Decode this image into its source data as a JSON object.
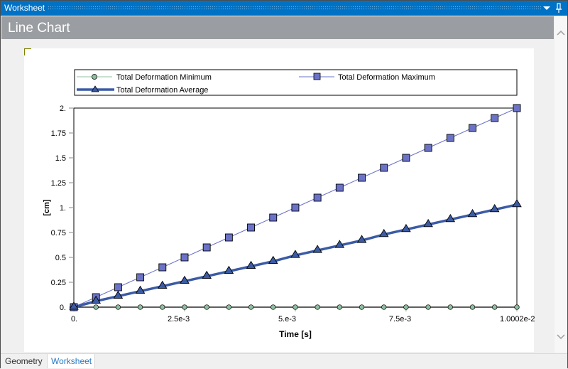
{
  "window": {
    "title": "Worksheet",
    "dropdown_icon": "chevron-down-icon",
    "pin_icon": "pin-icon"
  },
  "header": {
    "title": "Line Chart"
  },
  "tabs": [
    {
      "label": "Geometry",
      "active": false
    },
    {
      "label": "Worksheet",
      "active": true
    }
  ],
  "colors": {
    "titlebar": "#0072c6",
    "header": "#9a9da1",
    "min_series": "#8fbf9f",
    "max_series": "#6b73c8",
    "avg_series": "#3b5ba5"
  },
  "chart_data": {
    "type": "line",
    "title": "",
    "xlabel": "Time [s]",
    "ylabel": "[cm]",
    "xlim": [
      0,
      0.010002
    ],
    "ylim": [
      0,
      2
    ],
    "x_tick_labels": [
      "0.",
      "2.5e-3",
      "5.e-3",
      "7.5e-3",
      "1.0002e-2"
    ],
    "y_tick_labels": [
      "0.",
      "0.25",
      "0.5",
      "0.75",
      "1.",
      "1.25",
      "1.5",
      "1.75",
      "2."
    ],
    "grid": false,
    "legend_position": "top",
    "x": [
      0,
      0.0005,
      0.001,
      0.0015,
      0.002,
      0.0025,
      0.003,
      0.0035,
      0.004,
      0.0045,
      0.005,
      0.0055,
      0.006,
      0.0065,
      0.007,
      0.0075,
      0.008,
      0.0085,
      0.009,
      0.0095,
      0.010002
    ],
    "series": [
      {
        "name": "Total Deformation Minimum",
        "marker": "circle",
        "values": [
          0,
          0,
          0,
          0,
          0,
          0,
          0,
          0,
          0,
          0,
          0,
          0,
          0,
          0,
          0,
          0,
          0,
          0,
          0,
          0,
          0
        ]
      },
      {
        "name": "Total Deformation Maximum",
        "marker": "square",
        "values": [
          0,
          0.1,
          0.2,
          0.3,
          0.4,
          0.5,
          0.6,
          0.7,
          0.8,
          0.9,
          1.0,
          1.1,
          1.2,
          1.3,
          1.4,
          1.5,
          1.6,
          1.7,
          1.8,
          1.9,
          2.0
        ]
      },
      {
        "name": "Total Deformation Average",
        "marker": "triangle",
        "values": [
          0,
          0.06,
          0.11,
          0.16,
          0.21,
          0.26,
          0.31,
          0.36,
          0.41,
          0.46,
          0.52,
          0.57,
          0.62,
          0.67,
          0.73,
          0.78,
          0.83,
          0.88,
          0.93,
          0.98,
          1.03
        ]
      }
    ]
  }
}
